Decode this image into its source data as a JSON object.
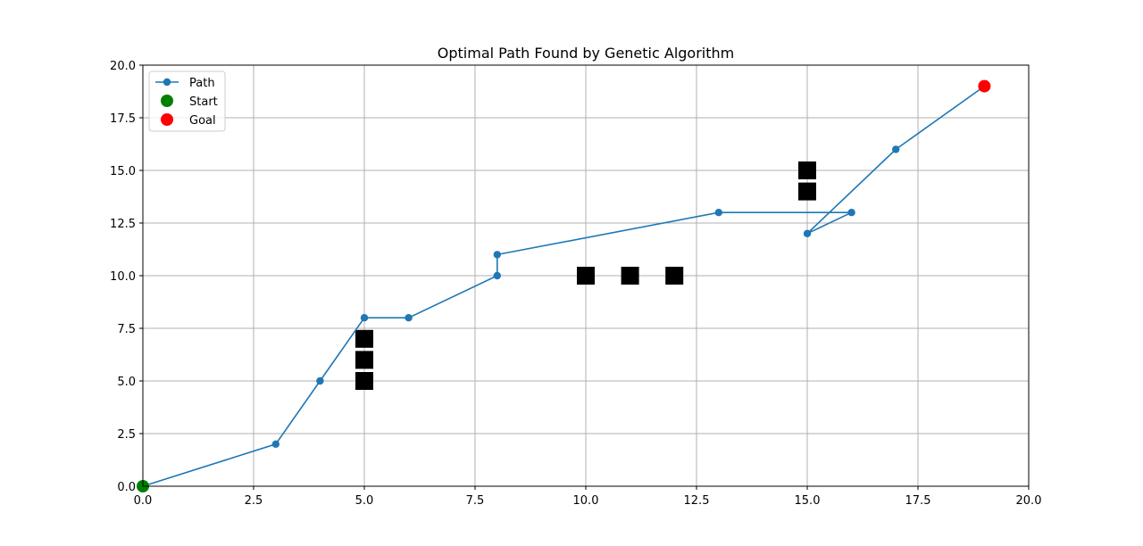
{
  "chart_data": {
    "type": "line",
    "title": "Optimal Path Found by Genetic Algorithm",
    "xlabel": "",
    "ylabel": "",
    "xlim": [
      0,
      20
    ],
    "ylim": [
      0,
      20
    ],
    "x_ticks": [
      "0.0",
      "2.5",
      "5.0",
      "7.5",
      "10.0",
      "12.5",
      "15.0",
      "17.5",
      "20.0"
    ],
    "y_ticks": [
      "0.0",
      "2.5",
      "5.0",
      "7.5",
      "10.0",
      "12.5",
      "15.0",
      "17.5",
      "20.0"
    ],
    "grid": true,
    "legend_position": "top-left",
    "series": [
      {
        "name": "Path",
        "kind": "line-with-markers",
        "color": "#1f77b4",
        "points": [
          [
            0,
            0
          ],
          [
            3,
            2
          ],
          [
            4,
            5
          ],
          [
            5,
            8
          ],
          [
            6,
            8
          ],
          [
            8,
            10
          ],
          [
            8,
            11
          ],
          [
            13,
            13
          ],
          [
            16,
            13
          ],
          [
            15,
            12
          ],
          [
            17,
            16
          ],
          [
            19,
            19
          ]
        ]
      },
      {
        "name": "Start",
        "kind": "point",
        "color": "#008000",
        "points": [
          [
            0,
            0
          ]
        ]
      },
      {
        "name": "Goal",
        "kind": "point",
        "color": "#ff0000",
        "points": [
          [
            19,
            19
          ]
        ]
      }
    ],
    "obstacles": {
      "color": "#000000",
      "marker": "square",
      "points": [
        [
          5,
          5
        ],
        [
          5,
          6
        ],
        [
          5,
          7
        ],
        [
          10,
          10
        ],
        [
          11,
          10
        ],
        [
          12,
          10
        ],
        [
          15,
          14
        ],
        [
          15,
          15
        ]
      ]
    }
  }
}
